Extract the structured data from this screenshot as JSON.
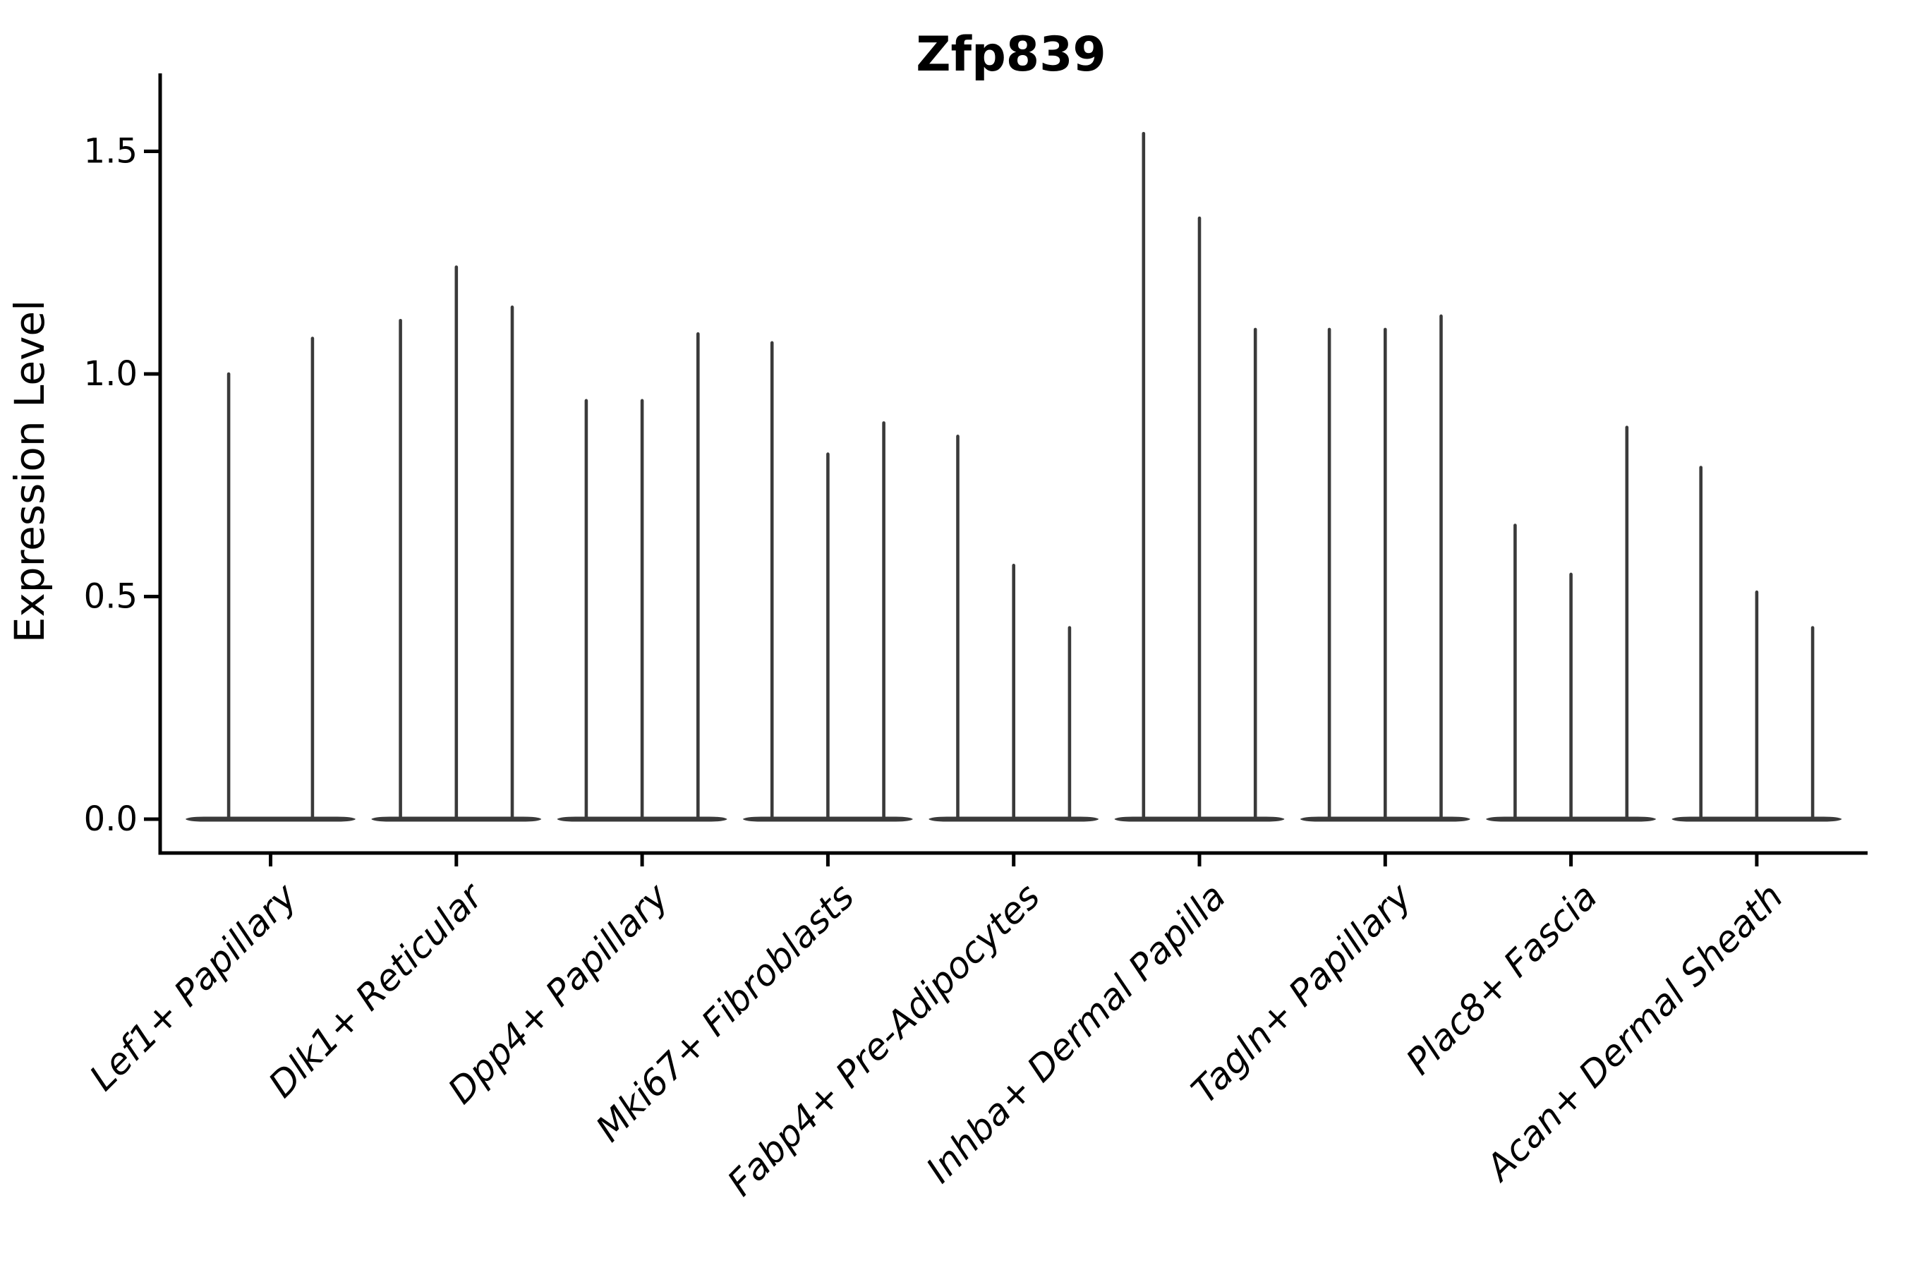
{
  "chart_data": {
    "type": "violin",
    "title": "Zfp839",
    "ylabel": "Expression Level",
    "xlabel": "",
    "grid": false,
    "legend": false,
    "background_color": "#ffffff",
    "violin_color": "#3a3a3a",
    "axis_color": "#000000",
    "ytick_labels": [
      "0.0",
      "0.5",
      "1.0",
      "1.5"
    ],
    "ytick_values": [
      0.0,
      0.5,
      1.0,
      1.5
    ],
    "ylim": [
      -0.076,
      1.675
    ],
    "baseline_value": 0.0,
    "description": "Each category shows narrow violins collapsed to a wide base at 0 with thin spikes rising to the maximum expression value",
    "groups": [
      {
        "category": "Lef1+ Papillary",
        "violin_maxima": [
          1.0,
          1.08
        ]
      },
      {
        "category": "Dlk1+ Reticular",
        "violin_maxima": [
          1.12,
          1.24,
          1.15
        ]
      },
      {
        "category": "Dpp4+ Papillary",
        "violin_maxima": [
          0.94,
          0.94,
          1.09
        ]
      },
      {
        "category": "Mki67+ Fibroblasts",
        "violin_maxima": [
          1.07,
          0.82,
          0.89
        ]
      },
      {
        "category": "Fabp4+ Pre-Adipocytes",
        "violin_maxima": [
          0.86,
          0.57,
          0.43
        ]
      },
      {
        "category": "Inhba+ Dermal Papilla",
        "violin_maxima": [
          1.54,
          1.35,
          1.1
        ]
      },
      {
        "category": "Tagln+ Papillary",
        "violin_maxima": [
          1.1,
          1.1,
          1.13
        ]
      },
      {
        "category": "Plac8+ Fascia",
        "violin_maxima": [
          0.66,
          0.55,
          0.88
        ]
      },
      {
        "category": "Acan+ Dermal Sheath",
        "violin_maxima": [
          0.79,
          0.51,
          0.43
        ]
      }
    ]
  }
}
